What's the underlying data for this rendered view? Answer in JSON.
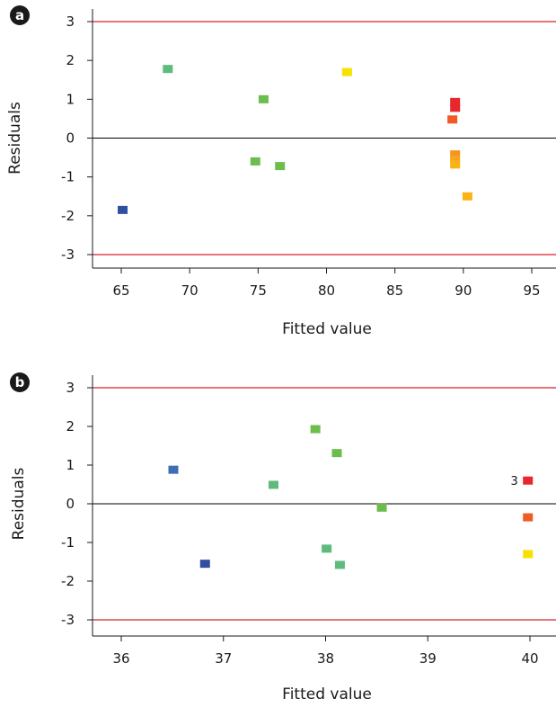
{
  "chart_data": [
    {
      "panel_label": "a",
      "type": "scatter",
      "xlabel": "Fitted value",
      "ylabel": "Residuals",
      "xlim": [
        63,
        97
      ],
      "ylim": [
        -3.4,
        3.4
      ],
      "x_ticks": [
        65,
        70,
        75,
        80,
        85,
        90,
        95
      ],
      "y_ticks": [
        3,
        2,
        1,
        0,
        -1,
        -2,
        -3
      ],
      "y_tick_labels": [
        "3",
        "2",
        "1",
        "0",
        "-1",
        "-2",
        "-3"
      ],
      "reference_lines": [
        {
          "y": 3,
          "color": "#d62027"
        },
        {
          "y": 0,
          "color": "#000000"
        },
        {
          "y": -3,
          "color": "#d62027"
        }
      ],
      "grid": false,
      "points": [
        {
          "x": 65.1,
          "y": -1.85,
          "color": "#2f4fa0"
        },
        {
          "x": 68.4,
          "y": 1.78,
          "color": "#5fba7d"
        },
        {
          "x": 74.8,
          "y": -0.6,
          "color": "#6bbd4e"
        },
        {
          "x": 75.4,
          "y": 1.0,
          "color": "#6bbd4e"
        },
        {
          "x": 76.6,
          "y": -0.72,
          "color": "#6bbd4e"
        },
        {
          "x": 81.5,
          "y": 1.7,
          "color": "#f6e100"
        },
        {
          "x": 89.2,
          "y": 0.48,
          "color": "#f15a24"
        },
        {
          "x": 89.4,
          "y": 0.78,
          "color": "#e8262b"
        },
        {
          "x": 89.4,
          "y": 0.93,
          "color": "#e8262b"
        },
        {
          "x": 89.4,
          "y": -0.42,
          "color": "#f7931e"
        },
        {
          "x": 89.4,
          "y": -0.55,
          "color": "#f9a51b"
        },
        {
          "x": 89.4,
          "y": -0.68,
          "color": "#fbb216"
        },
        {
          "x": 90.3,
          "y": -1.5,
          "color": "#fbb216"
        }
      ]
    },
    {
      "panel_label": "b",
      "type": "scatter",
      "xlabel": "Fitted value",
      "ylabel": "Residuals",
      "xlim": [
        35.75,
        40.25
      ],
      "ylim": [
        -3.4,
        3.4
      ],
      "x_ticks": [
        36,
        37,
        38,
        39,
        40
      ],
      "y_ticks": [
        3,
        2,
        1,
        0,
        -1,
        -2,
        -3
      ],
      "y_tick_labels": [
        "3",
        "2",
        "1",
        "0",
        "-1",
        "-2",
        "-3"
      ],
      "reference_lines": [
        {
          "y": 3,
          "color": "#d62027"
        },
        {
          "y": 0,
          "color": "#000000"
        },
        {
          "y": -3,
          "color": "#d62027"
        }
      ],
      "grid": false,
      "points": [
        {
          "x": 36.51,
          "y": 0.88,
          "color": "#3f6db3"
        },
        {
          "x": 36.82,
          "y": -1.55,
          "color": "#2f4fa0"
        },
        {
          "x": 37.49,
          "y": 0.49,
          "color": "#5fba7d"
        },
        {
          "x": 37.9,
          "y": 1.93,
          "color": "#6bbd4e"
        },
        {
          "x": 38.01,
          "y": -1.16,
          "color": "#5fba7d"
        },
        {
          "x": 38.11,
          "y": 1.31,
          "color": "#6bbd4e"
        },
        {
          "x": 38.14,
          "y": -1.58,
          "color": "#5fba7d"
        },
        {
          "x": 38.55,
          "y": -0.1,
          "color": "#6bbd4e"
        },
        {
          "x": 39.98,
          "y": 0.6,
          "color": "#e8262b",
          "label": "3"
        },
        {
          "x": 39.98,
          "y": -0.35,
          "color": "#f15a24"
        },
        {
          "x": 39.98,
          "y": -1.3,
          "color": "#f6e100"
        }
      ]
    }
  ]
}
